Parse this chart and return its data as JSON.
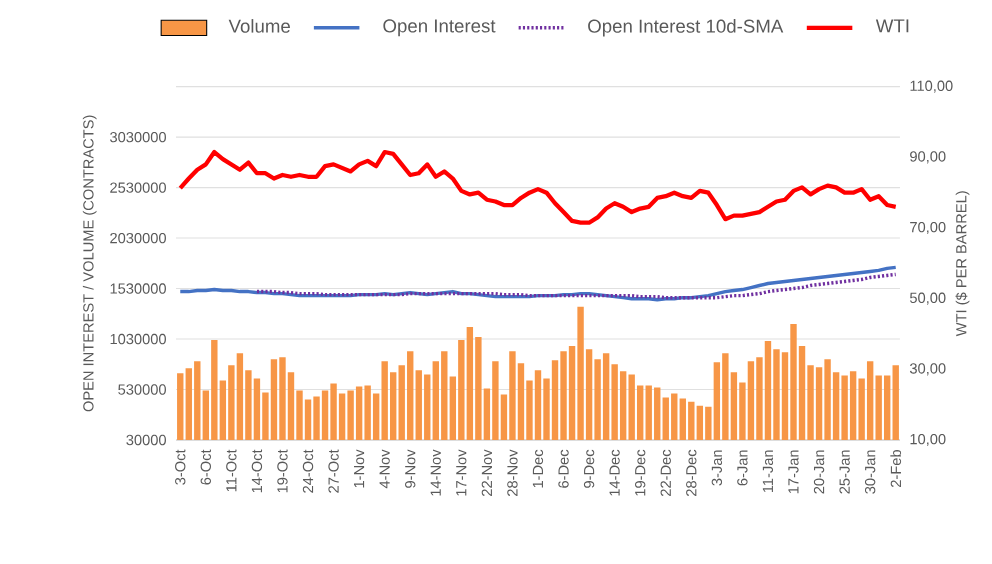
{
  "chart_data": {
    "type": "bar",
    "categories": [
      "3-Oct",
      null,
      null,
      "6-Oct",
      null,
      null,
      "11-Oct",
      null,
      null,
      "14-Oct",
      null,
      null,
      "19-Oct",
      null,
      null,
      "24-Oct",
      null,
      null,
      "27-Oct",
      null,
      null,
      "1-Nov",
      null,
      null,
      "4-Nov",
      null,
      null,
      "9-Nov",
      null,
      null,
      "14-Nov",
      null,
      null,
      "17-Nov",
      null,
      null,
      "22-Nov",
      null,
      null,
      "28-Nov",
      null,
      null,
      "1-Dec",
      null,
      null,
      "6-Dec",
      null,
      null,
      "9-Dec",
      null,
      null,
      "14-Dec",
      null,
      null,
      "19-Dec",
      null,
      null,
      "22-Dec",
      null,
      null,
      "28-Dec",
      null,
      null,
      "3-Jan",
      null,
      null,
      "6-Jan",
      null,
      null,
      "11-Jan",
      null,
      null,
      "17-Jan",
      null,
      null,
      "20-Jan",
      null,
      null,
      "25-Jan",
      null,
      null,
      "30-Jan",
      null,
      null,
      "2-Feb"
    ],
    "series": [
      {
        "name": "Volume",
        "axis": "y",
        "color": "#f79646",
        "values": [
          690000,
          740000,
          810000,
          520000,
          1020000,
          620000,
          770000,
          890000,
          720000,
          640000,
          500000,
          830000,
          850000,
          700000,
          520000,
          430000,
          460000,
          520000,
          590000,
          490000,
          520000,
          560000,
          570000,
          490000,
          810000,
          700000,
          770000,
          910000,
          720000,
          680000,
          810000,
          910000,
          660000,
          1020000,
          1150000,
          1050000,
          540000,
          810000,
          480000,
          910000,
          790000,
          620000,
          720000,
          640000,
          820000,
          910000,
          960000,
          1350000,
          930000,
          830000,
          890000,
          780000,
          710000,
          680000,
          570000,
          570000,
          550000,
          450000,
          490000,
          440000,
          410000,
          370000,
          360000,
          800000,
          890000,
          700000,
          600000,
          810000,
          850000,
          1010000,
          930000,
          900000,
          1180000,
          960000,
          770000,
          750000,
          830000,
          700000,
          670000,
          710000,
          640000,
          810000,
          670000,
          670000,
          770000
        ]
      },
      {
        "name": "Open Interest",
        "type": "line",
        "axis": "y",
        "color": "#4472c4",
        "line_style": "solid",
        "values": [
          1500000,
          1500000,
          1510000,
          1510000,
          1520000,
          1510000,
          1510000,
          1500000,
          1500000,
          1490000,
          1490000,
          1480000,
          1480000,
          1470000,
          1460000,
          1460000,
          1460000,
          1460000,
          1460000,
          1460000,
          1460000,
          1470000,
          1470000,
          1470000,
          1480000,
          1470000,
          1480000,
          1490000,
          1480000,
          1470000,
          1480000,
          1490000,
          1500000,
          1480000,
          1480000,
          1470000,
          1460000,
          1450000,
          1450000,
          1450000,
          1450000,
          1450000,
          1460000,
          1460000,
          1460000,
          1470000,
          1470000,
          1480000,
          1480000,
          1470000,
          1460000,
          1450000,
          1440000,
          1430000,
          1430000,
          1430000,
          1420000,
          1430000,
          1430000,
          1440000,
          1440000,
          1450000,
          1460000,
          1480000,
          1500000,
          1510000,
          1520000,
          1540000,
          1560000,
          1580000,
          1590000,
          1600000,
          1610000,
          1620000,
          1630000,
          1640000,
          1650000,
          1660000,
          1670000,
          1680000,
          1690000,
          1700000,
          1710000,
          1730000,
          1740000
        ]
      },
      {
        "name": "Open Interest 10d-SMA",
        "type": "line",
        "axis": "y",
        "color": "#7030a0",
        "line_style": "dotted",
        "values": [
          null,
          null,
          null,
          null,
          null,
          null,
          null,
          null,
          null,
          1500000,
          1500000,
          1500000,
          1490000,
          1490000,
          1480000,
          1480000,
          1480000,
          1470000,
          1470000,
          1470000,
          1470000,
          1470000,
          1470000,
          1470000,
          1470000,
          1470000,
          1470000,
          1480000,
          1480000,
          1480000,
          1480000,
          1480000,
          1480000,
          1480000,
          1480000,
          1480000,
          1480000,
          1480000,
          1470000,
          1470000,
          1470000,
          1460000,
          1460000,
          1460000,
          1460000,
          1460000,
          1460000,
          1460000,
          1460000,
          1460000,
          1460000,
          1460000,
          1460000,
          1460000,
          1450000,
          1450000,
          1450000,
          1440000,
          1440000,
          1440000,
          1440000,
          1440000,
          1440000,
          1440000,
          1450000,
          1460000,
          1460000,
          1470000,
          1480000,
          1500000,
          1510000,
          1520000,
          1530000,
          1540000,
          1560000,
          1570000,
          1580000,
          1590000,
          1600000,
          1610000,
          1620000,
          1640000,
          1650000,
          1660000,
          1670000
        ]
      },
      {
        "name": "WTI",
        "type": "line",
        "axis": "y2",
        "color": "#ff0000",
        "line_style": "solid",
        "values": [
          81.3,
          84,
          86.5,
          88,
          91.5,
          89.5,
          88,
          86.5,
          88.5,
          85.5,
          85.5,
          84,
          85,
          84.5,
          85,
          84.5,
          84.5,
          87.5,
          88,
          87,
          86,
          88,
          89,
          87.5,
          91.5,
          91,
          88,
          85,
          85.5,
          88,
          84.5,
          86,
          84,
          80.5,
          79.5,
          80,
          78,
          77.5,
          76.5,
          76.5,
          78.5,
          80,
          81,
          80,
          77,
          74.5,
          72,
          71.5,
          71.5,
          73,
          75.5,
          77,
          76,
          74.5,
          75.5,
          76,
          78.5,
          79,
          80,
          79,
          78.5,
          80.5,
          80,
          76.5,
          72.5,
          73.5,
          73.5,
          74,
          74.5,
          76,
          77.5,
          78,
          80.5,
          81.5,
          79.5,
          81,
          82,
          81.5,
          80,
          80,
          81,
          78,
          79,
          76.5,
          76
        ]
      }
    ],
    "ylabel": "OPEN INTEREST / VOLUME (CONTRACTS)",
    "y2label": "WTI ($ PER BARREL)",
    "ylim": [
      30000,
      3530000
    ],
    "yticks": [
      30000,
      530000,
      1030000,
      1530000,
      2030000,
      2530000,
      3030000,
      {
        "value": 3530000,
        "label": null
      }
    ],
    "y2lim": [
      10,
      110
    ],
    "y2ticks": [
      {
        "value": 10,
        "label": "10,00"
      },
      {
        "value": 30,
        "label": "30,00"
      },
      {
        "value": 50,
        "label": "50,00"
      },
      {
        "value": 70,
        "label": "70,00"
      },
      {
        "value": 90,
        "label": "90,00"
      },
      {
        "value": 110,
        "label": "110,00"
      }
    ],
    "grid": "y",
    "legend": "top",
    "marker": "none"
  }
}
